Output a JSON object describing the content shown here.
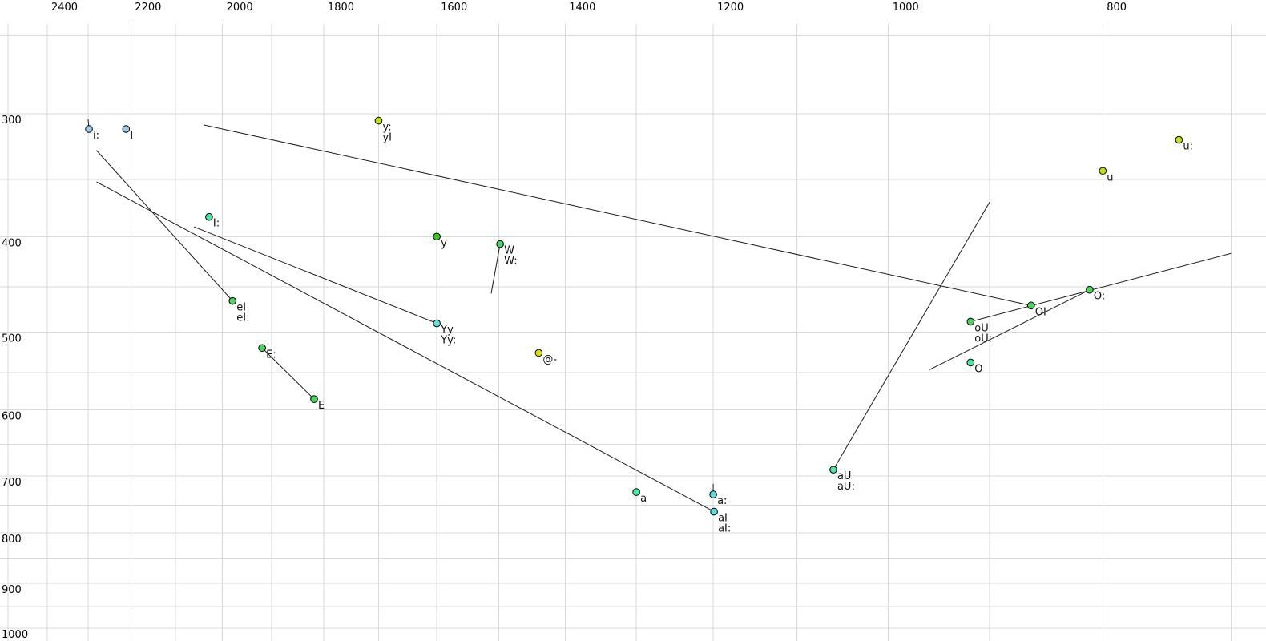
{
  "chart_data": {
    "type": "scatter",
    "title": "",
    "description": "Vowel formant plot: F2 (Hz, log scale, decreasing left-to-right) on top x-axis, F1 (Hz, log scale, increasing downward) on left y-axis. Points are vowel tokens labeled in X-SAMPA; thin black lines are formant glide trajectories.",
    "grid": true,
    "legend": "none",
    "x_axis": {
      "scale": "log",
      "reversed": true,
      "domain": [
        2521,
        675
      ],
      "labeled_ticks": [
        2400,
        2200,
        2000,
        1800,
        1600,
        1400,
        1200,
        1000,
        800
      ],
      "grid_min": 700,
      "grid_max": 2500,
      "grid_step": 100
    },
    "y_axis": {
      "scale": "log",
      "reversed": false,
      "domain": [
        243.3,
        1030
      ],
      "labeled_ticks": [
        300,
        400,
        500,
        600,
        700,
        800,
        900,
        1000
      ],
      "grid_min": 250,
      "grid_max": 1000,
      "grid_step": 50
    },
    "colors": {
      "blue": "#9dccee",
      "cyan": "#5fdcdc",
      "spring": "#4fe89f",
      "green": "#4cd360",
      "lime": "#3bcc21",
      "yellowgreen": "#c3e00c",
      "yellow": "#d9e204",
      "grid": "#d9d9d9",
      "trajectory": "#1a1a1a",
      "background": "#ffffff",
      "point_outline": "#000000"
    },
    "points": [
      {
        "labels": [
          "i:"
        ],
        "f2": 2298,
        "f1": 311,
        "color": "blue"
      },
      {
        "labels": [
          "I"
        ],
        "f2": 2211,
        "f1": 311,
        "color": "blue"
      },
      {
        "labels": [
          "y:",
          "yI"
        ],
        "f2": 1700,
        "f1": 305,
        "color": "yellowgreen"
      },
      {
        "labels": [
          "u:"
        ],
        "f2": 739,
        "f1": 319,
        "color": "yellowgreen"
      },
      {
        "labels": [
          "u"
        ],
        "f2": 800,
        "f1": 343,
        "color": "yellowgreen"
      },
      {
        "labels": [
          "I:"
        ],
        "f2": 2028,
        "f1": 382,
        "color": "spring"
      },
      {
        "labels": [
          "y"
        ],
        "f2": 1600,
        "f1": 400,
        "color": "lime"
      },
      {
        "labels": [
          "W",
          "W:"
        ],
        "f2": 1498,
        "f1": 407,
        "color": "green"
      },
      {
        "labels": [
          "eI",
          "eI:"
        ],
        "f2": 1979,
        "f1": 465,
        "color": "green"
      },
      {
        "labels": [
          "Yy",
          "Yy:"
        ],
        "f2": 1600,
        "f1": 490,
        "color": "cyan"
      },
      {
        "labels": [
          "E:"
        ],
        "f2": 1919,
        "f1": 519,
        "color": "green"
      },
      {
        "labels": [
          "E"
        ],
        "f2": 1818,
        "f1": 585,
        "color": "green"
      },
      {
        "labels": [
          "@-"
        ],
        "f2": 1439,
        "f1": 525,
        "color": "yellow"
      },
      {
        "labels": [
          "O:"
        ],
        "f2": 811,
        "f1": 453,
        "color": "green"
      },
      {
        "labels": [
          "OI"
        ],
        "f2": 862,
        "f1": 470,
        "color": "green"
      },
      {
        "labels": [
          "oU",
          "oU:"
        ],
        "f2": 918,
        "f1": 488,
        "color": "green"
      },
      {
        "labels": [
          "O"
        ],
        "f2": 918,
        "f1": 537,
        "color": "spring"
      },
      {
        "labels": [
          "aU",
          "aU:"
        ],
        "f2": 1059,
        "f1": 690,
        "color": "spring"
      },
      {
        "labels": [
          "a"
        ],
        "f2": 1300,
        "f1": 727,
        "color": "spring"
      },
      {
        "labels": [
          "a:"
        ],
        "f2": 1200,
        "f1": 731,
        "color": "cyan"
      },
      {
        "labels": [
          "aI",
          "aI:"
        ],
        "f2": 1199,
        "f1": 761,
        "color": "cyan"
      }
    ],
    "trajectories": [
      {
        "name": "OI-glide",
        "from": {
          "f2": 862,
          "f1": 470
        },
        "to": {
          "f2": 2040,
          "f1": 308
        }
      },
      {
        "name": "eI-glide",
        "from": {
          "f2": 1979,
          "f1": 465
        },
        "to": {
          "f2": 2280,
          "f1": 327
        }
      },
      {
        "name": "aI-glide",
        "from": {
          "f2": 1199,
          "f1": 761
        },
        "to": {
          "f2": 2280,
          "f1": 352
        }
      },
      {
        "name": "Yy-glide",
        "from": {
          "f2": 1600,
          "f1": 490
        },
        "to": {
          "f2": 2060,
          "f1": 391
        }
      },
      {
        "name": "E-long-glide",
        "from": {
          "f2": 1919,
          "f1": 519
        },
        "to": {
          "f2": 1818,
          "f1": 585
        }
      },
      {
        "name": "W-glide",
        "from": {
          "f2": 1498,
          "f1": 407
        },
        "to": {
          "f2": 1512,
          "f1": 457
        }
      },
      {
        "name": "aU-glide",
        "from": {
          "f2": 1059,
          "f1": 690
        },
        "to": {
          "f2": 900,
          "f1": 369
        }
      },
      {
        "name": "oU-glide",
        "from": {
          "f2": 918,
          "f1": 488
        },
        "to": {
          "f2": 700,
          "f1": 416
        }
      },
      {
        "name": "O-long-glide",
        "from": {
          "f2": 811,
          "f1": 453
        },
        "to": {
          "f2": 958,
          "f1": 546
        }
      },
      {
        "name": "i-long-tick",
        "from": {
          "f2": 2298,
          "f1": 311
        },
        "to": {
          "f2": 2300,
          "f1": 304
        }
      },
      {
        "name": "a-long-tick",
        "from": {
          "f2": 1200,
          "f1": 731
        },
        "to": {
          "f2": 1200,
          "f1": 713
        }
      }
    ]
  }
}
